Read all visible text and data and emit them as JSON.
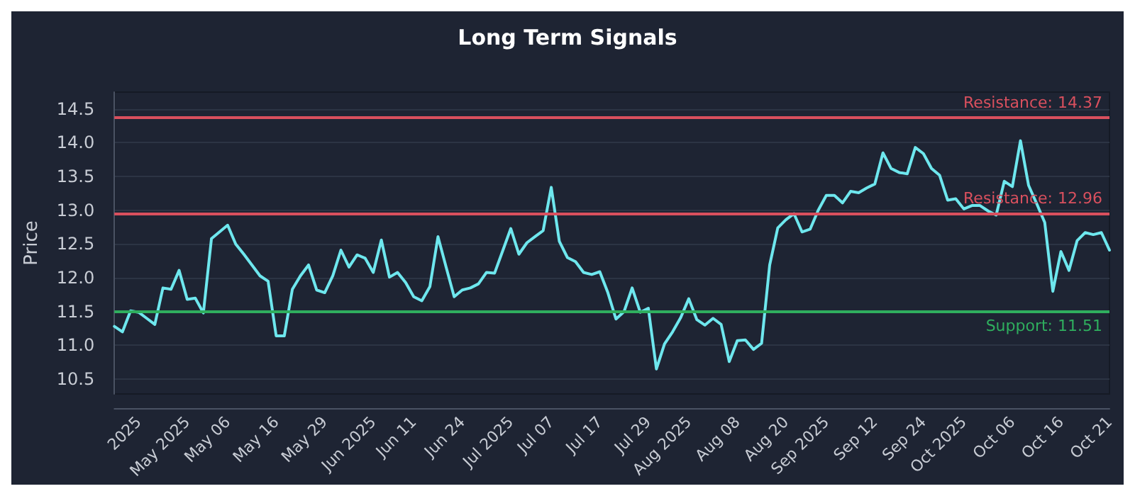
{
  "chart_data": {
    "type": "line",
    "title": "Long Term Signals",
    "ylabel": "Price",
    "categories": [
      null,
      null,
      null,
      "2025",
      null,
      null,
      null,
      null,
      null,
      "May 2025",
      null,
      null,
      null,
      null,
      "May 06",
      null,
      null,
      null,
      null,
      null,
      "May 16",
      null,
      null,
      null,
      null,
      null,
      "May 29",
      null,
      null,
      null,
      null,
      null,
      "Jun 2025",
      null,
      null,
      null,
      null,
      "Jun 11",
      null,
      null,
      null,
      null,
      null,
      "Jun 24",
      null,
      null,
      null,
      null,
      null,
      "Jul 2025",
      null,
      null,
      null,
      null,
      "Jul 07",
      null,
      null,
      null,
      null,
      null,
      "Jul 17",
      null,
      null,
      null,
      null,
      null,
      "Jul 29",
      null,
      null,
      null,
      null,
      "Aug 2025",
      null,
      null,
      null,
      null,
      null,
      "Aug 08",
      null,
      null,
      null,
      null,
      null,
      "Aug 20",
      null,
      null,
      null,
      null,
      "Sep 2025",
      null,
      null,
      null,
      null,
      null,
      "Sep 12",
      null,
      null,
      null,
      null,
      null,
      "Sep 24",
      null,
      null,
      null,
      null,
      "Oct 2025",
      null,
      null,
      null,
      null,
      null,
      "Oct 06",
      null,
      null,
      null,
      null,
      null,
      "Oct 16",
      null,
      null,
      null,
      null,
      null,
      "Oct 21"
    ],
    "series": [
      {
        "color": "#6ee7ee",
        "values": [
          11.28,
          11.2,
          11.51,
          11.49,
          11.4,
          11.31,
          11.85,
          11.83,
          12.11,
          11.68,
          11.7,
          11.48,
          12.58,
          12.68,
          12.78,
          12.5,
          12.35,
          12.19,
          12.03,
          11.95,
          11.14,
          11.14,
          11.83,
          12.03,
          12.19,
          11.82,
          11.78,
          12.03,
          12.41,
          12.16,
          12.34,
          12.29,
          12.08,
          12.56,
          12.01,
          12.08,
          11.93,
          11.72,
          11.66,
          11.87,
          12.61,
          12.16,
          11.72,
          11.82,
          11.85,
          11.91,
          12.08,
          12.07,
          12.4,
          12.73,
          12.35,
          12.52,
          12.61,
          12.7,
          13.34,
          12.54,
          12.3,
          12.24,
          12.08,
          12.05,
          12.09,
          11.78,
          11.39,
          11.5,
          11.85,
          11.49,
          11.55,
          10.65,
          11.02,
          11.2,
          11.41,
          11.69,
          11.38,
          11.3,
          11.4,
          11.31,
          10.76,
          11.07,
          11.08,
          10.94,
          11.03,
          12.19,
          12.74,
          12.86,
          12.95,
          12.68,
          12.72,
          13.0,
          13.22,
          13.22,
          13.11,
          13.28,
          13.26,
          13.33,
          13.39,
          13.85,
          13.62,
          13.56,
          13.54,
          13.93,
          13.84,
          13.62,
          13.52,
          13.15,
          13.17,
          13.02,
          13.07,
          13.07,
          12.99,
          12.93,
          13.43,
          13.35,
          14.03,
          13.37,
          13.1,
          12.82,
          11.8,
          12.39,
          12.11,
          12.55,
          12.67,
          12.64,
          12.67,
          12.41
        ]
      }
    ],
    "ylim": [
      10.28,
      14.75
    ],
    "yticks": [
      10.5,
      {
        "value": 11,
        "label": "11.0"
      },
      11.5,
      {
        "value": 12,
        "label": "12.0"
      },
      12.5,
      {
        "value": 13,
        "label": "13.0"
      },
      13.5,
      {
        "value": 14,
        "label": "14.0"
      },
      14.5
    ],
    "grid": "y",
    "marker": "none",
    "line_style": "solid",
    "ref_lines": [
      {
        "axis": "y",
        "value": 14.37,
        "label": "Resistance: 14.37",
        "color": "#d9505e"
      },
      {
        "axis": "y",
        "value": 12.96,
        "label": "Resistance: 12.96",
        "color": "#d9505e"
      },
      {
        "axis": "y",
        "value": 11.51,
        "label": "Support: 11.51",
        "color": "#2fae5e"
      }
    ]
  }
}
